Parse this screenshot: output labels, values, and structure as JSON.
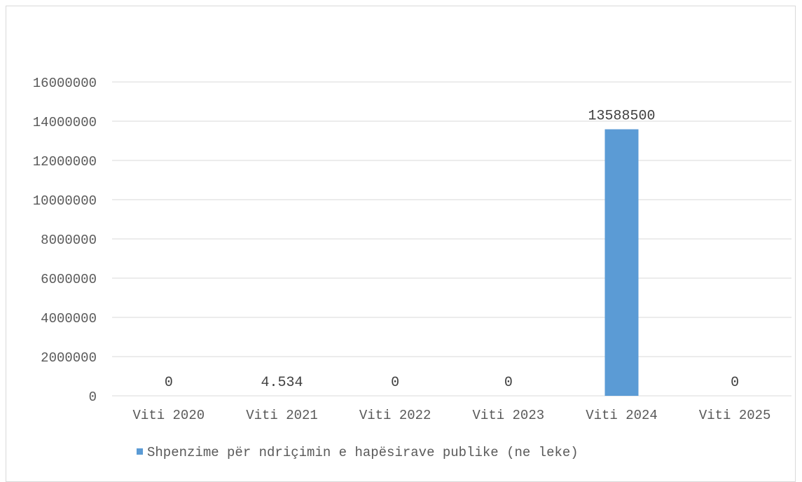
{
  "chart_data": {
    "type": "bar",
    "categories": [
      "Viti 2020",
      "Viti 2021",
      "Viti 2022",
      "Viti 2023",
      "Viti 2024",
      "Viti 2025"
    ],
    "series": [
      {
        "name": "Shpenzime për ndriçimin e hapësirave publike (ne leke)",
        "values": [
          0,
          4.534,
          0,
          0,
          13588500,
          0
        ],
        "data_labels": [
          "0",
          "4.534",
          "0",
          "0",
          "13588500",
          "0"
        ],
        "color": "#5b9bd5"
      }
    ],
    "ylim": [
      0,
      16000000
    ],
    "yticks": [
      "0",
      "2000000",
      "4000000",
      "6000000",
      "8000000",
      "10000000",
      "12000000",
      "14000000",
      "16000000"
    ],
    "grid": true,
    "legend_position": "bottom"
  },
  "colors": {
    "bar": "#5b9bd5",
    "grid": "#d9d9d9",
    "text": "#595959"
  }
}
